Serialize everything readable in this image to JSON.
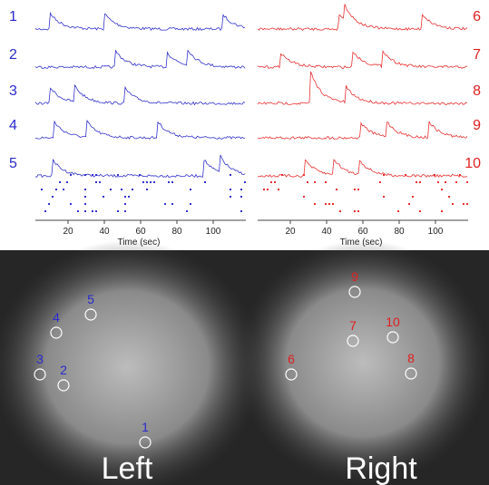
{
  "traces": {
    "left": {
      "labels": [
        "1",
        "2",
        "3",
        "4",
        "5"
      ],
      "xlim": [
        0,
        118
      ],
      "xticks": [
        20,
        40,
        60,
        80,
        100
      ],
      "xlabel": "Time (sec)"
    },
    "right": {
      "labels": [
        "6",
        "7",
        "8",
        "9",
        "10"
      ],
      "xlim": [
        0,
        118
      ],
      "xticks": [
        20,
        40,
        60,
        80,
        100
      ],
      "xlabel": "Time (sec)"
    }
  },
  "image": {
    "cells": [
      "1",
      "2",
      "3",
      "4",
      "5",
      "6",
      "7",
      "8",
      "9",
      "10"
    ],
    "hemispheres": [
      "Left",
      "Right"
    ]
  }
}
